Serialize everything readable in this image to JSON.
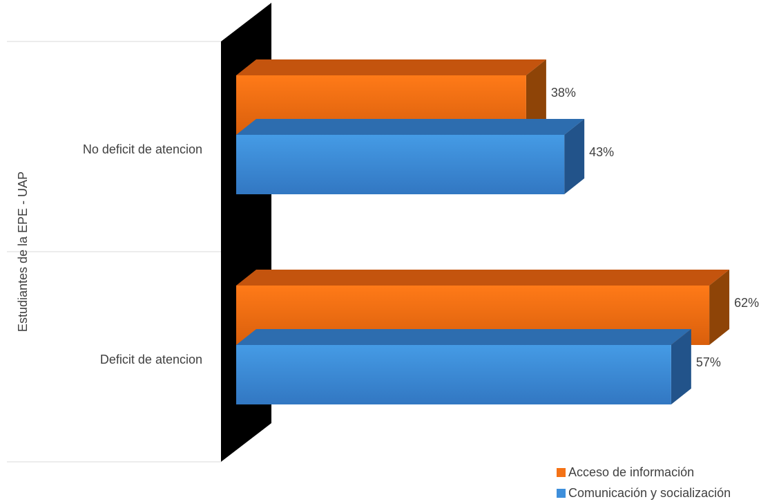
{
  "chart_data": {
    "type": "bar",
    "orientation": "horizontal",
    "three_d": true,
    "title": "",
    "ylabel": "Estudiantes de la EPE - UAP",
    "xlabel": "",
    "categories": [
      "No deficit de atencion",
      "Deficit de atencion"
    ],
    "series": [
      {
        "name": "Acceso de información",
        "values": [
          38,
          62
        ],
        "labels": [
          "38%",
          "62%"
        ],
        "color": "#F47216"
      },
      {
        "name": "Comunicación y socialización",
        "values": [
          43,
          57
        ],
        "labels": [
          "43%",
          "57%"
        ],
        "color": "#3E8FDB"
      }
    ],
    "xlim": [
      0,
      70
    ],
    "unit": "%",
    "grid": false,
    "legend_position": "bottom-right",
    "colors": {
      "wall": "#000000",
      "axis_line": "#D9D9D9",
      "text": "#404040"
    }
  }
}
